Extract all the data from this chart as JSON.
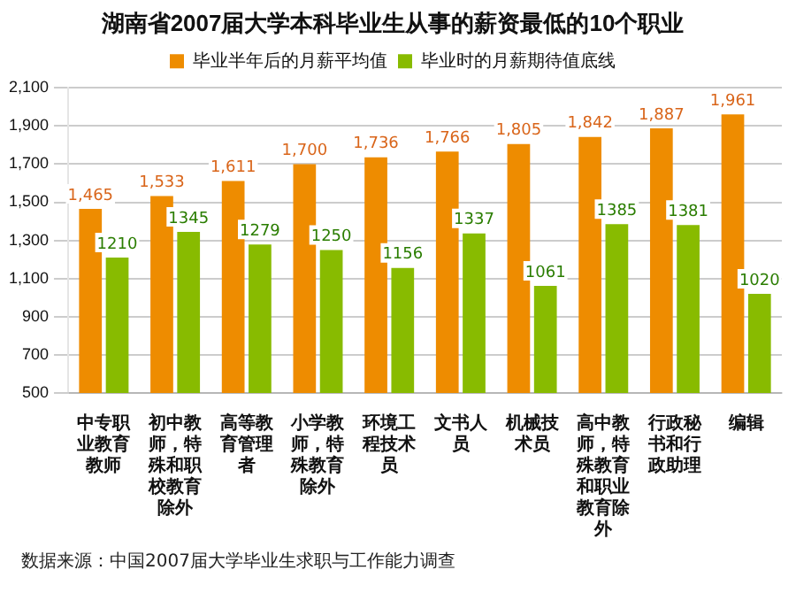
{
  "chart_data": {
    "type": "bar",
    "title": "湖南省2007届大学本科毕业生从事的薪资最低的10个职业",
    "categories": [
      "中专职业教育教师",
      "初中教师，特殊和职校教育除外",
      "高等教育管理者",
      "小学教师，特殊教育除外",
      "环境工程技术员",
      "文书人员",
      "机械技术员",
      "高中教师，特殊教育和职业教育除外",
      "行政秘书和行政助理",
      "编辑"
    ],
    "series": [
      {
        "name": "毕业半年后的月薪平均值",
        "color": "#ee8c00",
        "values": [
          1465,
          1533,
          1611,
          1700,
          1736,
          1766,
          1805,
          1842,
          1887,
          1961
        ],
        "value_labels": [
          "1,465",
          "1,533",
          "1,611",
          "1,700",
          "1,736",
          "1,766",
          "1,805",
          "1,842",
          "1,887",
          "1,961"
        ]
      },
      {
        "name": "毕业时的月薪期待值底线",
        "color": "#88bb00",
        "values": [
          1210,
          1345,
          1279,
          1250,
          1156,
          1337,
          1061,
          1385,
          1381,
          1020
        ],
        "value_labels": [
          "1210",
          "1345",
          "1279",
          "1250",
          "1156",
          "1337",
          "1061",
          "1385",
          "1381",
          "1020"
        ]
      }
    ],
    "ylim": [
      500,
      2100
    ],
    "yticks": [
      {
        "value": 500,
        "label": "500"
      },
      {
        "value": 700,
        "label": "700"
      },
      {
        "value": 900,
        "label": "900"
      },
      {
        "value": 1100,
        "label": "1,100"
      },
      {
        "value": 1300,
        "label": "1,300"
      },
      {
        "value": 1500,
        "label": "1,500"
      },
      {
        "value": 1700,
        "label": "1,700"
      },
      {
        "value": 1900,
        "label": "1,900"
      },
      {
        "value": 2100,
        "label": "2,100"
      }
    ],
    "grid": "y",
    "legend": "top",
    "annotations": [
      "数据来源：中国2007届大学毕业生求职与工作能力调查"
    ]
  }
}
